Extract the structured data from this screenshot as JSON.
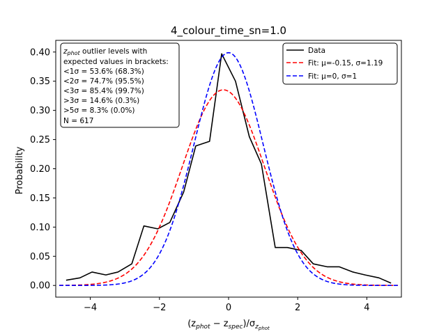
{
  "chart_data": {
    "type": "line",
    "title": "4_colour_time_sn=1.0",
    "xlabel_parts": {
      "open": "(z",
      "phot": "phot",
      "minus": " − z",
      "spec": "spec",
      "close": ")/σ",
      "sub_z": "z",
      "sub_phot": "phot"
    },
    "ylabel": "Probability",
    "xlim": [
      -5,
      5
    ],
    "ylim": [
      -0.02,
      0.42
    ],
    "xticks": [
      -4,
      -2,
      0,
      2,
      4
    ],
    "xtick_labels": [
      "−4",
      "−2",
      "0",
      "2",
      "4"
    ],
    "yticks": [
      0.0,
      0.05,
      0.1,
      0.15,
      0.2,
      0.25,
      0.3,
      0.35,
      0.4
    ],
    "ytick_labels": [
      "0.00",
      "0.05",
      "0.10",
      "0.15",
      "0.20",
      "0.25",
      "0.30",
      "0.35",
      "0.40"
    ],
    "grid": false,
    "legend_position": "top-right",
    "series": [
      {
        "name": "Data",
        "color": "#000000",
        "style": "solid",
        "x": [
          -4.7,
          -4.3,
          -3.95,
          -3.55,
          -3.2,
          -2.8,
          -2.45,
          -2.05,
          -1.7,
          -1.3,
          -0.95,
          -0.55,
          -0.2,
          0.2,
          0.6,
          0.95,
          1.35,
          1.7,
          2.1,
          2.45,
          2.85,
          3.2,
          3.6,
          3.95,
          4.35,
          4.7
        ],
        "y": [
          0.009,
          0.013,
          0.023,
          0.018,
          0.023,
          0.037,
          0.102,
          0.097,
          0.108,
          0.16,
          0.239,
          0.247,
          0.397,
          0.35,
          0.255,
          0.208,
          0.065,
          0.065,
          0.06,
          0.037,
          0.032,
          0.032,
          0.023,
          0.018,
          0.013,
          0.004
        ]
      },
      {
        "name": "Fit: μ=-0.15, σ=1.19",
        "color": "#ff0000",
        "style": "dashed",
        "mu": -0.15,
        "sigma": 1.19
      },
      {
        "name": "Fit: μ=0, σ=1",
        "color": "#0000ff",
        "style": "dashed",
        "mu": 0,
        "sigma": 1
      }
    ],
    "annotation_lines": [
      "z_phot outlier levels with",
      " expected values in brackets:",
      "<1σ = 53.6% (68.3%)",
      "<2σ = 74.7% (95.5%)",
      "<3σ = 85.4% (99.7%)",
      ">3σ = 14.6% (0.3%)",
      ">5σ = 8.3% (0.0%)",
      "N = 617"
    ]
  }
}
